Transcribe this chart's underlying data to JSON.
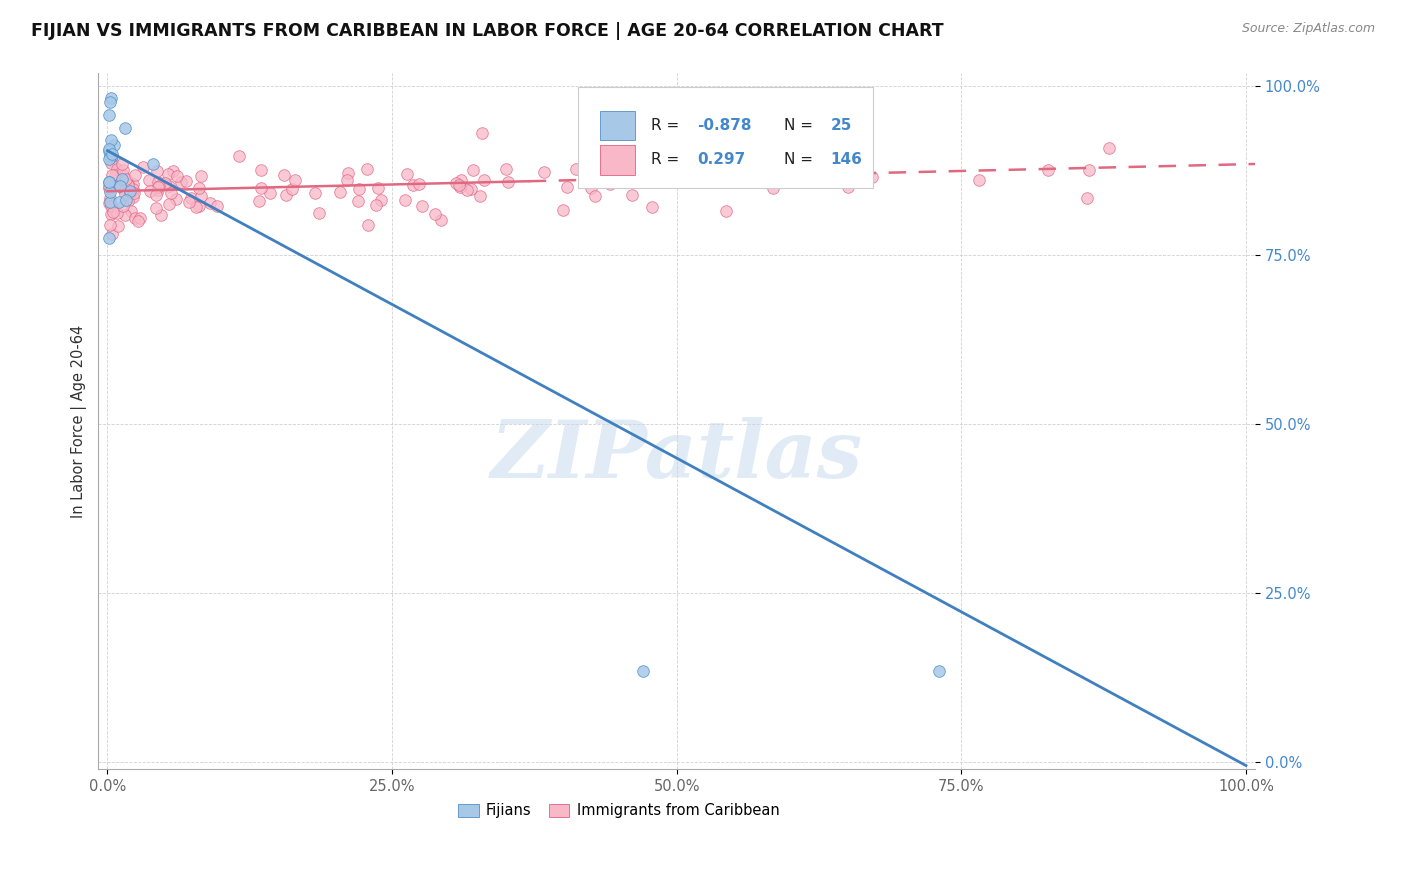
{
  "title": "FIJIAN VS IMMIGRANTS FROM CARIBBEAN IN LABOR FORCE | AGE 20-64 CORRELATION CHART",
  "source_text": "Source: ZipAtlas.com",
  "ylabel": "In Labor Force | Age 20-64",
  "watermark": "ZIPatlas",
  "fijian_color": "#a8c8e8",
  "fijian_edge": "#5090c8",
  "caribbean_color": "#f8b8c8",
  "caribbean_edge": "#e06080",
  "trend_blue": "#4080c0",
  "trend_pink": "#e06880",
  "background_color": "#ffffff",
  "grid_color": "#cccccc",
  "ytick_color": "#4488cc",
  "xtick_color": "#666666",
  "title_color": "#111111",
  "source_color": "#888888",
  "ylabel_color": "#333333"
}
